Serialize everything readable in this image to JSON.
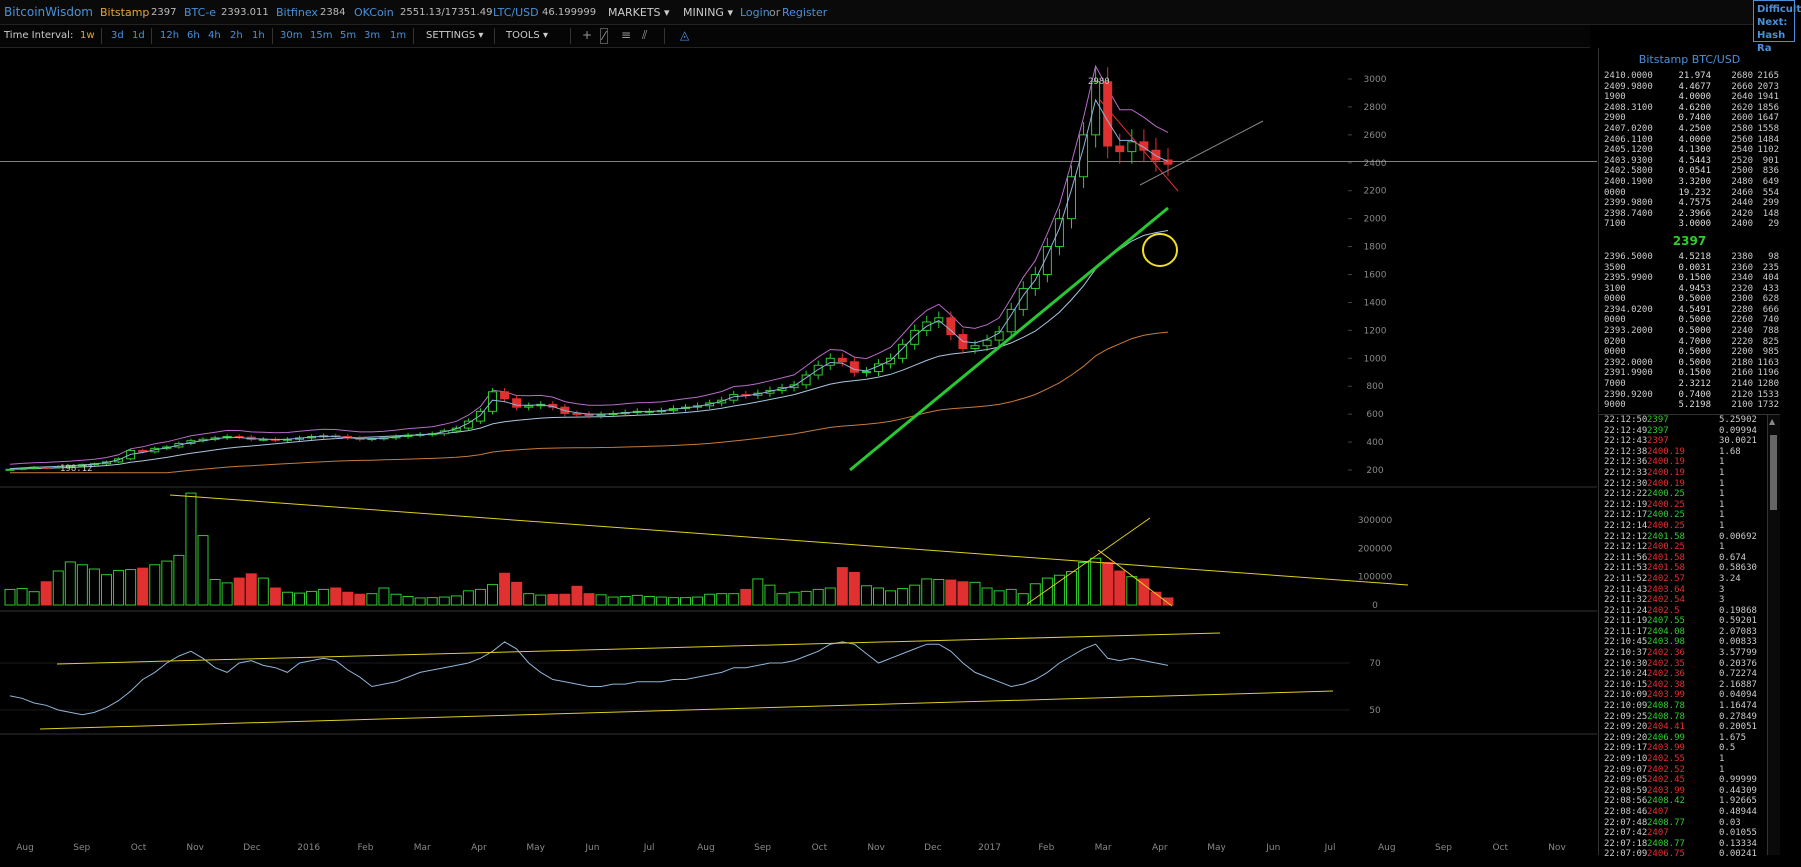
{
  "topbar": {
    "logo": "BitcoinWisdom",
    "exchanges": [
      {
        "name": "Bitstamp",
        "price": "2397"
      },
      {
        "name": "BTC-e",
        "price": "2393.011"
      },
      {
        "name": "Bitfinex",
        "price": "2384"
      },
      {
        "name": "OKCoin",
        "price": "2551.13/17351.49"
      },
      {
        "name": "LTC/USD",
        "price": "46.199999"
      }
    ],
    "markets": "MARKETS ▾",
    "mining": "MINING ▾",
    "login": "Login",
    "or": "or",
    "register": "Register",
    "difficulty": "Difficult",
    "next": "Next:",
    "hashrate": "Hash Ra"
  },
  "toolbar": {
    "time_interval_label": "Time Interval:",
    "intervals": [
      "1w",
      "3d",
      "1d",
      "12h",
      "6h",
      "4h",
      "2h",
      "1h",
      "30m",
      "15m",
      "5m",
      "3m",
      "1m"
    ],
    "selected_interval": "1w",
    "settings": "SETTINGS ▾",
    "tools": "TOOLS ▾",
    "tool_icons": [
      "crosshair-icon",
      "line-icon",
      "horizontal-lines-icon",
      "fib-icon",
      "alert-bell-icon"
    ]
  },
  "colors": {
    "up": "#2ecc2e",
    "down": "#e03030",
    "accent": "#4a90d9",
    "highlight": "#e8a33b"
  },
  "chart_data": {
    "type": "candlestick",
    "title": "",
    "price_axis": [
      "3000",
      "2800",
      "2600",
      "2400",
      "2200",
      "2000",
      "1800",
      "1600",
      "1400",
      "1200",
      "1000",
      "800",
      "600",
      "400",
      "200"
    ],
    "volume_axis": [
      "300000",
      "200000",
      "100000",
      "0"
    ],
    "rsi_axis": [
      "70",
      "50"
    ],
    "x_labels": [
      "Aug",
      "Sep",
      "Oct",
      "Nov",
      "Dec",
      "2016",
      "Feb",
      "Mar",
      "Apr",
      "May",
      "Jun",
      "Jul",
      "Aug",
      "Sep",
      "Oct",
      "Nov",
      "Dec",
      "2017",
      "Feb",
      "Mar",
      "Apr",
      "May",
      "Jun",
      "Jul",
      "Aug",
      "Sep",
      "Oct",
      "Nov"
    ],
    "annotations": {
      "high_label": "2980",
      "low_label": "198.12",
      "current_price_line": 2410
    },
    "closes": [
      205,
      212,
      220,
      218,
      225,
      230,
      238,
      245,
      258,
      280,
      340,
      330,
      355,
      365,
      390,
      410,
      420,
      430,
      440,
      435,
      420,
      420,
      415,
      420,
      430,
      440,
      445,
      440,
      430,
      420,
      425,
      430,
      440,
      450,
      455,
      460,
      480,
      500,
      550,
      620,
      760,
      710,
      650,
      660,
      670,
      650,
      605,
      600,
      590,
      598,
      604,
      612,
      620,
      620,
      625,
      640,
      650,
      660,
      680,
      700,
      740,
      735,
      750,
      770,
      790,
      810,
      880,
      950,
      1000,
      975,
      900,
      905,
      960,
      1000,
      1100,
      1200,
      1260,
      1290,
      1170,
      1070,
      1090,
      1130,
      1190,
      1350,
      1500,
      1600,
      1800,
      2000,
      2300,
      2600,
      2980,
      2520,
      2480,
      2550,
      2490,
      2420,
      2390
    ],
    "volumes": [
      55000,
      58000,
      47000,
      82000,
      120000,
      152000,
      142000,
      127000,
      107000,
      122000,
      125000,
      130000,
      142000,
      155000,
      175000,
      395000,
      245000,
      90000,
      78000,
      95000,
      110000,
      95000,
      60000,
      45000,
      42000,
      48000,
      55000,
      60000,
      45000,
      38000,
      40000,
      60000,
      38000,
      30000,
      25000,
      26000,
      28000,
      32000,
      50000,
      55000,
      72000,
      112000,
      80000,
      40000,
      35000,
      37000,
      38000,
      66000,
      40000,
      36000,
      28000,
      30000,
      34000,
      30000,
      28000,
      26000,
      26000,
      28000,
      38000,
      40000,
      40000,
      55000,
      92000,
      70000,
      40000,
      45000,
      48000,
      55000,
      60000,
      132000,
      115000,
      68000,
      60000,
      50000,
      58000,
      70000,
      92000,
      90000,
      88000,
      82000,
      80000,
      60000,
      50000,
      55000,
      40000,
      75000,
      95000,
      105000,
      118000,
      150000,
      165000,
      150000,
      120000,
      100000,
      92000,
      45000,
      25000
    ],
    "rsi": [
      56,
      55,
      53,
      52,
      50,
      49,
      48,
      49,
      51,
      54,
      58,
      63,
      66,
      70,
      73,
      75,
      72,
      68,
      66,
      70,
      71,
      69,
      68,
      66,
      70,
      71,
      72,
      71,
      67,
      64,
      60,
      61,
      62,
      64,
      66,
      67,
      68,
      69,
      70,
      72,
      75,
      79,
      76,
      70,
      66,
      63,
      62,
      61,
      60,
      60,
      61,
      61,
      62,
      62,
      62,
      63,
      63,
      64,
      65,
      66,
      68,
      68,
      69,
      70,
      70,
      71,
      73,
      75,
      78,
      79,
      78,
      74,
      70,
      72,
      74,
      76,
      78,
      78,
      75,
      70,
      66,
      64,
      62,
      60,
      61,
      63,
      66,
      70,
      73,
      76,
      78,
      72,
      71,
      72,
      71,
      70,
      69
    ],
    "ma_fast": [
      210,
      215,
      220,
      222,
      226,
      230,
      236,
      243,
      254,
      272,
      312,
      325,
      345,
      358,
      378,
      398,
      410,
      422,
      434,
      433,
      424,
      422,
      418,
      420,
      428,
      436,
      442,
      440,
      432,
      424,
      424,
      428,
      436,
      446,
      452,
      458,
      474,
      494,
      535,
      592,
      700,
      690,
      665,
      663,
      666,
      655,
      625,
      610,
      600,
      600,
      603,
      610,
      617,
      619,
      623,
      634,
      645,
      655,
      672,
      692,
      725,
      731,
      744,
      763,
      782,
      802,
      860,
      920,
      970,
      965,
      920,
      910,
      945,
      985,
      1070,
      1160,
      1230,
      1270,
      1200,
      1120,
      1110,
      1135,
      1180,
      1310,
      1450,
      1560,
      1740,
      1930,
      2210,
      2510,
      2850,
      2700,
      2560,
      2560,
      2510,
      2450,
      2410
    ],
    "ma_slow": [
      205,
      208,
      210,
      212,
      215,
      218,
      222,
      226,
      232,
      240,
      255,
      265,
      278,
      290,
      305,
      320,
      332,
      344,
      356,
      365,
      372,
      380,
      388,
      396,
      404,
      412,
      419,
      425,
      430,
      433,
      436,
      440,
      444,
      448,
      452,
      456,
      462,
      470,
      482,
      500,
      530,
      545,
      555,
      564,
      572,
      576,
      578,
      579,
      580,
      582,
      584,
      588,
      592,
      596,
      600,
      605,
      612,
      620,
      630,
      642,
      658,
      672,
      688,
      705,
      722,
      740,
      765,
      790,
      815,
      830,
      840,
      850,
      865,
      885,
      915,
      950,
      985,
      1015,
      1030,
      1040,
      1050,
      1063,
      1080,
      1110,
      1150,
      1195,
      1260,
      1330,
      1420,
      1520,
      1640,
      1720,
      1780,
      1840,
      1880,
      1900,
      1915
    ]
  },
  "orderbook": {
    "title": "Bitstamp BTC/USD",
    "asks": [
      [
        "2410.0000",
        "21.974",
        "2680",
        "2165"
      ],
      [
        "2409.9800",
        "4.4677",
        "2660",
        "2073"
      ],
      [
        "1900",
        "4.0000",
        "2640",
        "1941"
      ],
      [
        "2408.3100",
        "4.6200",
        "2620",
        "1856"
      ],
      [
        "2900",
        "0.7400",
        "2600",
        "1647"
      ],
      [
        "2407.0200",
        "4.2500",
        "2580",
        "1558"
      ],
      [
        "2406.1100",
        "4.0000",
        "2560",
        "1484"
      ],
      [
        "2405.1200",
        "4.1300",
        "2540",
        "1102"
      ],
      [
        "2403.9300",
        "4.5443",
        "2520",
        "901"
      ],
      [
        "2402.5800",
        "0.0541",
        "2500",
        "836"
      ],
      [
        "2400.1900",
        "3.3200",
        "2480",
        "649"
      ],
      [
        "0000",
        "19.232",
        "2460",
        "554"
      ],
      [
        "2399.9800",
        "4.7575",
        "2440",
        "299"
      ],
      [
        "2398.7400",
        "2.3966",
        "2420",
        "148"
      ],
      [
        "7100",
        "3.0000",
        "2400",
        "29"
      ]
    ],
    "last_price": "2397",
    "bids": [
      [
        "2396.5000",
        "4.5218",
        "2380",
        "98"
      ],
      [
        "3500",
        "0.0031",
        "2360",
        "235"
      ],
      [
        "2395.9900",
        "0.1500",
        "2340",
        "404"
      ],
      [
        "3100",
        "4.9453",
        "2320",
        "433"
      ],
      [
        "0000",
        "0.5000",
        "2300",
        "628"
      ],
      [
        "2394.0200",
        "4.5491",
        "2280",
        "666"
      ],
      [
        "0000",
        "0.5000",
        "2260",
        "740"
      ],
      [
        "2393.2000",
        "0.5000",
        "2240",
        "788"
      ],
      [
        "0200",
        "4.7000",
        "2220",
        "825"
      ],
      [
        "0000",
        "0.5000",
        "2200",
        "985"
      ],
      [
        "2392.0000",
        "0.5000",
        "2180",
        "1163"
      ],
      [
        "2391.9900",
        "0.1500",
        "2160",
        "1196"
      ],
      [
        "7000",
        "2.3212",
        "2140",
        "1280"
      ],
      [
        "2390.9200",
        "0.7400",
        "2120",
        "1533"
      ],
      [
        "9000",
        "5.2198",
        "2100",
        "1732"
      ]
    ]
  },
  "trades": [
    [
      "22:12:50",
      "2397",
      "up",
      "5.25902"
    ],
    [
      "22:12:49",
      "2397",
      "up",
      "0.09994"
    ],
    [
      "22:12:43",
      "2397",
      "dn",
      "30.0021"
    ],
    [
      "22:12:38",
      "2400.19",
      "dn",
      "1.68"
    ],
    [
      "22:12:36",
      "2400.19",
      "dn",
      "1"
    ],
    [
      "22:12:33",
      "2400.19",
      "dn",
      "1"
    ],
    [
      "22:12:30",
      "2400.19",
      "dn",
      "1"
    ],
    [
      "22:12:22",
      "2400.25",
      "up",
      "1"
    ],
    [
      "22:12:19",
      "2400.25",
      "dn",
      "1"
    ],
    [
      "22:12:17",
      "2400.25",
      "up",
      "1"
    ],
    [
      "22:12:14",
      "2400.25",
      "dn",
      "1"
    ],
    [
      "22:12:12",
      "2401.58",
      "up",
      "0.00692"
    ],
    [
      "22:12:12",
      "2400.25",
      "dn",
      "1"
    ],
    [
      "22:11:56",
      "2401.58",
      "dn",
      "0.674"
    ],
    [
      "22:11:53",
      "2401.58",
      "dn",
      "0.58630"
    ],
    [
      "22:11:52",
      "2402.57",
      "dn",
      "3.24"
    ],
    [
      "22:11:43",
      "2403.64",
      "dn",
      "3"
    ],
    [
      "22:11:32",
      "2402.54",
      "dn",
      "3"
    ],
    [
      "22:11:24",
      "2402.5",
      "dn",
      "0.19868"
    ],
    [
      "22:11:19",
      "2407.55",
      "up",
      "0.59201"
    ],
    [
      "22:11:17",
      "2404.08",
      "up",
      "2.07083"
    ],
    [
      "22:10:45",
      "2403.98",
      "up",
      "0.00833"
    ],
    [
      "22:10:37",
      "2402.36",
      "dn",
      "3.57799"
    ],
    [
      "22:10:30",
      "2402.35",
      "dn",
      "0.20376"
    ],
    [
      "22:10:24",
      "2402.36",
      "dn",
      "0.72274"
    ],
    [
      "22:10:15",
      "2402.38",
      "dn",
      "2.16887"
    ],
    [
      "22:10:09",
      "2403.99",
      "dn",
      "0.04094"
    ],
    [
      "22:10:09",
      "2408.78",
      "up",
      "1.16474"
    ],
    [
      "22:09:25",
      "2408.78",
      "up",
      "0.27849"
    ],
    [
      "22:09:20",
      "2404.41",
      "dn",
      "0.20051"
    ],
    [
      "22:09:20",
      "2406.99",
      "up",
      "1.675"
    ],
    [
      "22:09:17",
      "2403.99",
      "dn",
      "0.5"
    ],
    [
      "22:09:10",
      "2402.55",
      "dn",
      "1"
    ],
    [
      "22:09:07",
      "2402.52",
      "dn",
      "1"
    ],
    [
      "22:09:05",
      "2402.45",
      "dn",
      "0.99999"
    ],
    [
      "22:08:59",
      "2403.99",
      "dn",
      "0.44309"
    ],
    [
      "22:08:56",
      "2408.42",
      "up",
      "1.92665"
    ],
    [
      "22:08:46",
      "2407",
      "dn",
      "0.48944"
    ],
    [
      "22:07:48",
      "2408.77",
      "up",
      "0.03"
    ],
    [
      "22:07:42",
      "2407",
      "dn",
      "0.01055"
    ],
    [
      "22:07:18",
      "2408.77",
      "up",
      "0.13334"
    ],
    [
      "22:07:09",
      "2406.75",
      "dn",
      "0.00241"
    ]
  ]
}
